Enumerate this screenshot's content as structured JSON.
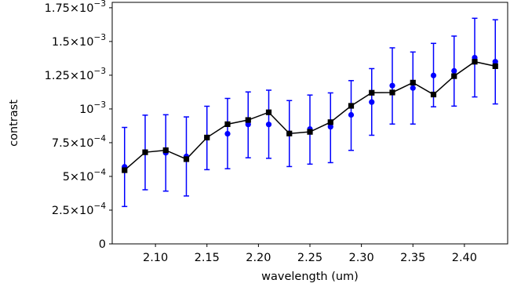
{
  "chart_data": {
    "type": "scatter",
    "xlabel": "wavelength (um)",
    "ylabel": "contrast",
    "xlim": [
      2.058,
      2.442
    ],
    "ylim": [
      0,
      0.00179
    ],
    "grid": false,
    "x_ticks": [
      {
        "value": 2.1,
        "label": "2.10"
      },
      {
        "value": 2.15,
        "label": "2.15"
      },
      {
        "value": 2.2,
        "label": "2.20"
      },
      {
        "value": 2.25,
        "label": "2.25"
      },
      {
        "value": 2.3,
        "label": "2.30"
      },
      {
        "value": 2.35,
        "label": "2.35"
      },
      {
        "value": 2.4,
        "label": "2.40"
      }
    ],
    "y_ticks": [
      {
        "value": 0,
        "mantissa": "0",
        "exponent": ""
      },
      {
        "value": 0.00025,
        "mantissa": "2.5×10",
        "exponent": "−4"
      },
      {
        "value": 0.0005,
        "mantissa": "5×10",
        "exponent": "−4"
      },
      {
        "value": 0.00075,
        "mantissa": "7.5×10",
        "exponent": "−4"
      },
      {
        "value": 0.001,
        "mantissa": "10",
        "exponent": "−3"
      },
      {
        "value": 0.00125,
        "mantissa": "1.25×10",
        "exponent": "−3"
      },
      {
        "value": 0.0015,
        "mantissa": "1.5×10",
        "exponent": "−3"
      },
      {
        "value": 0.00175,
        "mantissa": "1.75×10",
        "exponent": "−3"
      }
    ],
    "x": [
      2.07,
      2.09,
      2.11,
      2.13,
      2.15,
      2.17,
      2.19,
      2.21,
      2.23,
      2.25,
      2.27,
      2.29,
      2.31,
      2.33,
      2.35,
      2.37,
      2.39,
      2.41,
      2.43
    ],
    "series": [
      {
        "marker": "circle",
        "color": "#0000ff",
        "errorbars": true,
        "values": [
          0.000571,
          0.00068,
          0.000675,
          0.000648,
          0.000788,
          0.000816,
          0.000885,
          0.000885,
          0.000818,
          0.000851,
          0.000868,
          0.000956,
          0.001051,
          0.001173,
          0.001155,
          0.001248,
          0.001282,
          0.00138,
          0.00135
        ],
        "err_low": [
          0.000277,
          0.000401,
          0.000391,
          0.000355,
          0.00055,
          0.000557,
          0.000638,
          0.000634,
          0.000573,
          0.000591,
          0.000602,
          0.000693,
          0.000805,
          0.000888,
          0.000888,
          0.001016,
          0.001021,
          0.001089,
          0.001037
        ],
        "err_high": [
          0.000863,
          0.000954,
          0.000957,
          0.000941,
          0.00102,
          0.001078,
          0.001126,
          0.001139,
          0.001062,
          0.001103,
          0.001119,
          0.00121,
          0.001299,
          0.001453,
          0.001422,
          0.001486,
          0.00154,
          0.001672,
          0.001661
        ]
      },
      {
        "marker": "square",
        "color": "#000000",
        "line": true,
        "values": [
          0.000546,
          0.000679,
          0.000694,
          0.000628,
          0.000788,
          0.000887,
          0.000918,
          0.000975,
          0.000818,
          0.00083,
          0.000902,
          0.001023,
          0.00112,
          0.001122,
          0.001195,
          0.001107,
          0.001243,
          0.00135,
          0.001317
        ]
      }
    ]
  }
}
